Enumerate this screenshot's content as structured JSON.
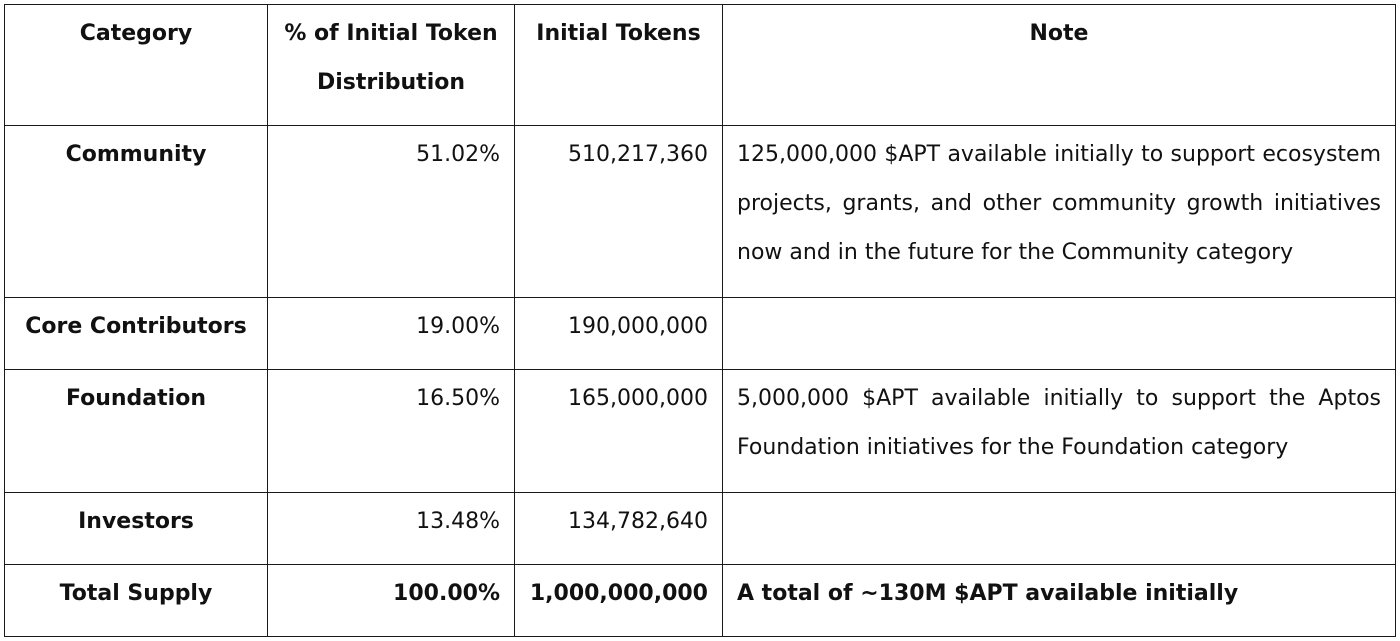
{
  "headers": {
    "category": "Category",
    "percent": "% of Initial Token Distribution",
    "tokens": "Initial Tokens",
    "note": "Note"
  },
  "rows": [
    {
      "category": "Community",
      "percent": "51.02%",
      "tokens": "510,217,360",
      "note": "125,000,000 $APT available initially to support ecosystem projects, grants, and other community growth initiatives now and in the future for the Community category"
    },
    {
      "category": "Core Contributors",
      "percent": "19.00%",
      "tokens": "190,000,000",
      "note": ""
    },
    {
      "category": "Foundation",
      "percent": "16.50%",
      "tokens": "165,000,000",
      "note": "5,000,000 $APT available initially to support the Aptos Foundation initiatives for the Foundation category"
    },
    {
      "category": "Investors",
      "percent": "13.48%",
      "tokens": "134,782,640",
      "note": ""
    }
  ],
  "total": {
    "category": "Total Supply",
    "percent": "100.00%",
    "tokens": "1,000,000,000",
    "note": "A total of ~130M $APT available initially"
  }
}
